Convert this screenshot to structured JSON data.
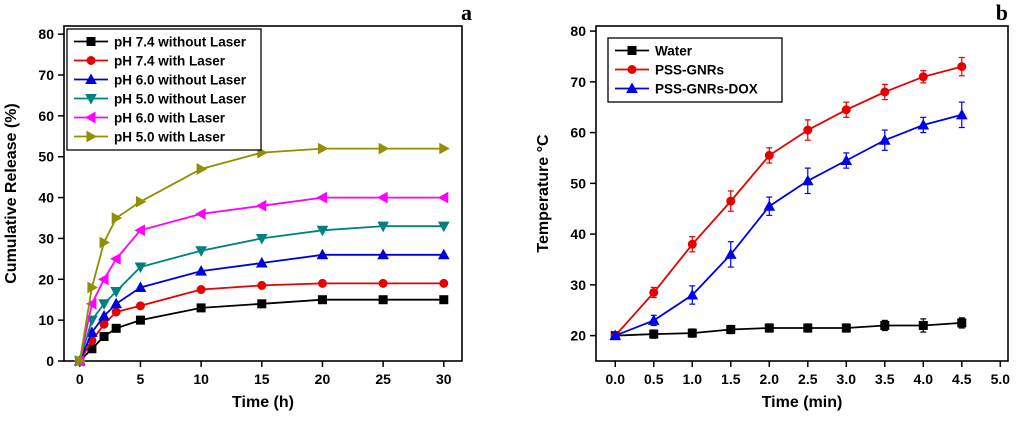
{
  "panels": [
    {
      "label": "a"
    },
    {
      "label": "b"
    }
  ],
  "chart_data": [
    {
      "type": "line",
      "title": "",
      "xlabel": "Time (h)",
      "ylabel": "Cumulative Release (%)",
      "xlim": [
        -1.3,
        31.5
      ],
      "ylim": [
        0,
        82
      ],
      "xticks": [
        0,
        5,
        10,
        15,
        20,
        25,
        30
      ],
      "xtick_labels": [
        "0",
        "5",
        "10",
        "15",
        "20",
        "25",
        "30"
      ],
      "yticks": [
        0,
        10,
        20,
        30,
        40,
        50,
        60,
        70,
        80
      ],
      "ytick_labels": [
        "0",
        "10",
        "20",
        "30",
        "40",
        "50",
        "60",
        "70",
        "80"
      ],
      "grid": false,
      "legend_position": "top-left",
      "x": [
        0,
        1,
        2,
        3,
        5,
        10,
        15,
        20,
        25,
        30
      ],
      "series": [
        {
          "name": "pH 7.4 without Laser",
          "color": "#000000",
          "marker": "square",
          "values": [
            0,
            3,
            6,
            8,
            10,
            13,
            14,
            15,
            15,
            15
          ]
        },
        {
          "name": "pH 7.4 with Laser",
          "color": "#e60000",
          "marker": "circle",
          "values": [
            0,
            5,
            9,
            12,
            13.5,
            17.5,
            18.5,
            19,
            19,
            19
          ]
        },
        {
          "name": "pH 6.0 without Laser",
          "color": "#0000dd",
          "marker": "triangle-up",
          "values": [
            0,
            7,
            11,
            14,
            18,
            22,
            24,
            26,
            26,
            26
          ]
        },
        {
          "name": "pH 5.0 without Laser",
          "color": "#008080",
          "marker": "triangle-down",
          "values": [
            0,
            10,
            14,
            17,
            23,
            27,
            30,
            32,
            33,
            33
          ]
        },
        {
          "name": "pH 6.0 with Laser",
          "color": "#ff00ff",
          "marker": "triangle-left",
          "values": [
            0,
            14,
            20,
            25,
            32,
            36,
            38,
            40,
            40,
            40
          ]
        },
        {
          "name": "pH 5.0 with Laser",
          "color": "#8f8f00",
          "marker": "triangle-right",
          "values": [
            0,
            18,
            29,
            35,
            39,
            47,
            51,
            52,
            52,
            52
          ]
        }
      ]
    },
    {
      "type": "line",
      "title": "",
      "xlabel": "Time (min)",
      "ylabel": "Temperature °C",
      "xlim": [
        -0.25,
        5.1
      ],
      "ylim": [
        15,
        81
      ],
      "xticks": [
        0,
        0.5,
        1,
        1.5,
        2,
        2.5,
        3,
        3.5,
        4,
        4.5,
        5
      ],
      "xtick_labels": [
        "0.0",
        "0.5",
        "1.0",
        "1.5",
        "2.0",
        "2.5",
        "3.0",
        "3.5",
        "4.0",
        "4.5",
        "5.0"
      ],
      "yticks": [
        20,
        30,
        40,
        50,
        60,
        70,
        80
      ],
      "ytick_labels": [
        "20",
        "30",
        "40",
        "50",
        "60",
        "70",
        "80"
      ],
      "grid": false,
      "legend_position": "top-left",
      "x": [
        0,
        0.5,
        1,
        1.5,
        2,
        2.5,
        3,
        3.5,
        4,
        4.5
      ],
      "series": [
        {
          "name": "Water",
          "color": "#000000",
          "marker": "square",
          "values": [
            20,
            20.3,
            20.5,
            21.2,
            21.5,
            21.5,
            21.5,
            22,
            22,
            22.5
          ],
          "errors": [
            0.5,
            0.8,
            0.8,
            0.8,
            0.8,
            0.8,
            0.8,
            1,
            1.3,
            1
          ]
        },
        {
          "name": "PSS-GNRs",
          "color": "#e60000",
          "marker": "circle",
          "values": [
            20,
            28.5,
            38,
            46.5,
            55.5,
            60.5,
            64.5,
            68,
            71,
            73
          ],
          "errors": [
            0.5,
            1,
            1.5,
            2,
            1.5,
            2,
            1.5,
            1.5,
            1.2,
            1.8
          ]
        },
        {
          "name": "PSS-GNRs-DOX",
          "color": "#0000ee",
          "marker": "triangle-up",
          "values": [
            20,
            23,
            28,
            36,
            45.5,
            50.5,
            54.5,
            58.5,
            61.5,
            63.5
          ],
          "errors": [
            0.5,
            1,
            1.8,
            2.5,
            1.8,
            2.5,
            1.5,
            2,
            1.5,
            2.5
          ]
        }
      ]
    }
  ]
}
